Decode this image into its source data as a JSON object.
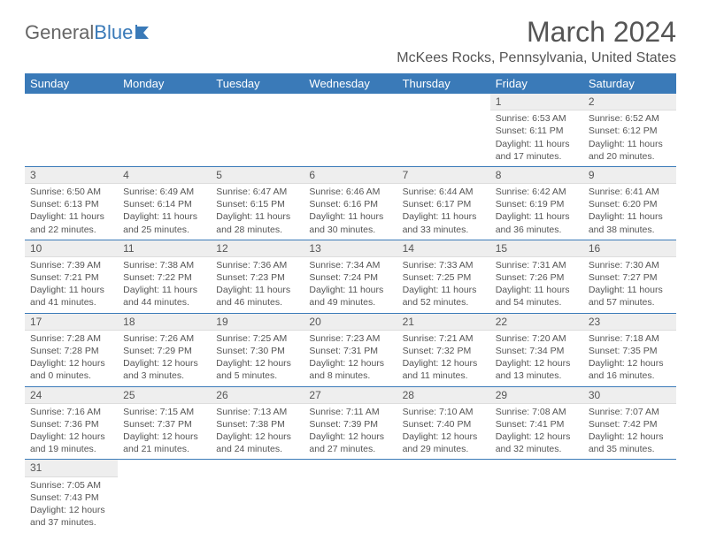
{
  "logo": {
    "general": "General",
    "blue": "Blue"
  },
  "title": "March 2024",
  "location": "McKees Rocks, Pennsylvania, United States",
  "colors": {
    "accent": "#3a7ab8",
    "headerText": "#ffffff",
    "dayHeaderBg": "#eeeeee",
    "text": "#555555"
  },
  "dayNames": [
    "Sunday",
    "Monday",
    "Tuesday",
    "Wednesday",
    "Thursday",
    "Friday",
    "Saturday"
  ],
  "weeks": [
    [
      null,
      null,
      null,
      null,
      null,
      {
        "n": "1",
        "sr": "Sunrise: 6:53 AM",
        "ss": "Sunset: 6:11 PM",
        "dl": "Daylight: 11 hours and 17 minutes."
      },
      {
        "n": "2",
        "sr": "Sunrise: 6:52 AM",
        "ss": "Sunset: 6:12 PM",
        "dl": "Daylight: 11 hours and 20 minutes."
      }
    ],
    [
      {
        "n": "3",
        "sr": "Sunrise: 6:50 AM",
        "ss": "Sunset: 6:13 PM",
        "dl": "Daylight: 11 hours and 22 minutes."
      },
      {
        "n": "4",
        "sr": "Sunrise: 6:49 AM",
        "ss": "Sunset: 6:14 PM",
        "dl": "Daylight: 11 hours and 25 minutes."
      },
      {
        "n": "5",
        "sr": "Sunrise: 6:47 AM",
        "ss": "Sunset: 6:15 PM",
        "dl": "Daylight: 11 hours and 28 minutes."
      },
      {
        "n": "6",
        "sr": "Sunrise: 6:46 AM",
        "ss": "Sunset: 6:16 PM",
        "dl": "Daylight: 11 hours and 30 minutes."
      },
      {
        "n": "7",
        "sr": "Sunrise: 6:44 AM",
        "ss": "Sunset: 6:17 PM",
        "dl": "Daylight: 11 hours and 33 minutes."
      },
      {
        "n": "8",
        "sr": "Sunrise: 6:42 AM",
        "ss": "Sunset: 6:19 PM",
        "dl": "Daylight: 11 hours and 36 minutes."
      },
      {
        "n": "9",
        "sr": "Sunrise: 6:41 AM",
        "ss": "Sunset: 6:20 PM",
        "dl": "Daylight: 11 hours and 38 minutes."
      }
    ],
    [
      {
        "n": "10",
        "sr": "Sunrise: 7:39 AM",
        "ss": "Sunset: 7:21 PM",
        "dl": "Daylight: 11 hours and 41 minutes."
      },
      {
        "n": "11",
        "sr": "Sunrise: 7:38 AM",
        "ss": "Sunset: 7:22 PM",
        "dl": "Daylight: 11 hours and 44 minutes."
      },
      {
        "n": "12",
        "sr": "Sunrise: 7:36 AM",
        "ss": "Sunset: 7:23 PM",
        "dl": "Daylight: 11 hours and 46 minutes."
      },
      {
        "n": "13",
        "sr": "Sunrise: 7:34 AM",
        "ss": "Sunset: 7:24 PM",
        "dl": "Daylight: 11 hours and 49 minutes."
      },
      {
        "n": "14",
        "sr": "Sunrise: 7:33 AM",
        "ss": "Sunset: 7:25 PM",
        "dl": "Daylight: 11 hours and 52 minutes."
      },
      {
        "n": "15",
        "sr": "Sunrise: 7:31 AM",
        "ss": "Sunset: 7:26 PM",
        "dl": "Daylight: 11 hours and 54 minutes."
      },
      {
        "n": "16",
        "sr": "Sunrise: 7:30 AM",
        "ss": "Sunset: 7:27 PM",
        "dl": "Daylight: 11 hours and 57 minutes."
      }
    ],
    [
      {
        "n": "17",
        "sr": "Sunrise: 7:28 AM",
        "ss": "Sunset: 7:28 PM",
        "dl": "Daylight: 12 hours and 0 minutes."
      },
      {
        "n": "18",
        "sr": "Sunrise: 7:26 AM",
        "ss": "Sunset: 7:29 PM",
        "dl": "Daylight: 12 hours and 3 minutes."
      },
      {
        "n": "19",
        "sr": "Sunrise: 7:25 AM",
        "ss": "Sunset: 7:30 PM",
        "dl": "Daylight: 12 hours and 5 minutes."
      },
      {
        "n": "20",
        "sr": "Sunrise: 7:23 AM",
        "ss": "Sunset: 7:31 PM",
        "dl": "Daylight: 12 hours and 8 minutes."
      },
      {
        "n": "21",
        "sr": "Sunrise: 7:21 AM",
        "ss": "Sunset: 7:32 PM",
        "dl": "Daylight: 12 hours and 11 minutes."
      },
      {
        "n": "22",
        "sr": "Sunrise: 7:20 AM",
        "ss": "Sunset: 7:34 PM",
        "dl": "Daylight: 12 hours and 13 minutes."
      },
      {
        "n": "23",
        "sr": "Sunrise: 7:18 AM",
        "ss": "Sunset: 7:35 PM",
        "dl": "Daylight: 12 hours and 16 minutes."
      }
    ],
    [
      {
        "n": "24",
        "sr": "Sunrise: 7:16 AM",
        "ss": "Sunset: 7:36 PM",
        "dl": "Daylight: 12 hours and 19 minutes."
      },
      {
        "n": "25",
        "sr": "Sunrise: 7:15 AM",
        "ss": "Sunset: 7:37 PM",
        "dl": "Daylight: 12 hours and 21 minutes."
      },
      {
        "n": "26",
        "sr": "Sunrise: 7:13 AM",
        "ss": "Sunset: 7:38 PM",
        "dl": "Daylight: 12 hours and 24 minutes."
      },
      {
        "n": "27",
        "sr": "Sunrise: 7:11 AM",
        "ss": "Sunset: 7:39 PM",
        "dl": "Daylight: 12 hours and 27 minutes."
      },
      {
        "n": "28",
        "sr": "Sunrise: 7:10 AM",
        "ss": "Sunset: 7:40 PM",
        "dl": "Daylight: 12 hours and 29 minutes."
      },
      {
        "n": "29",
        "sr": "Sunrise: 7:08 AM",
        "ss": "Sunset: 7:41 PM",
        "dl": "Daylight: 12 hours and 32 minutes."
      },
      {
        "n": "30",
        "sr": "Sunrise: 7:07 AM",
        "ss": "Sunset: 7:42 PM",
        "dl": "Daylight: 12 hours and 35 minutes."
      }
    ],
    [
      {
        "n": "31",
        "sr": "Sunrise: 7:05 AM",
        "ss": "Sunset: 7:43 PM",
        "dl": "Daylight: 12 hours and 37 minutes."
      },
      null,
      null,
      null,
      null,
      null,
      null
    ]
  ]
}
